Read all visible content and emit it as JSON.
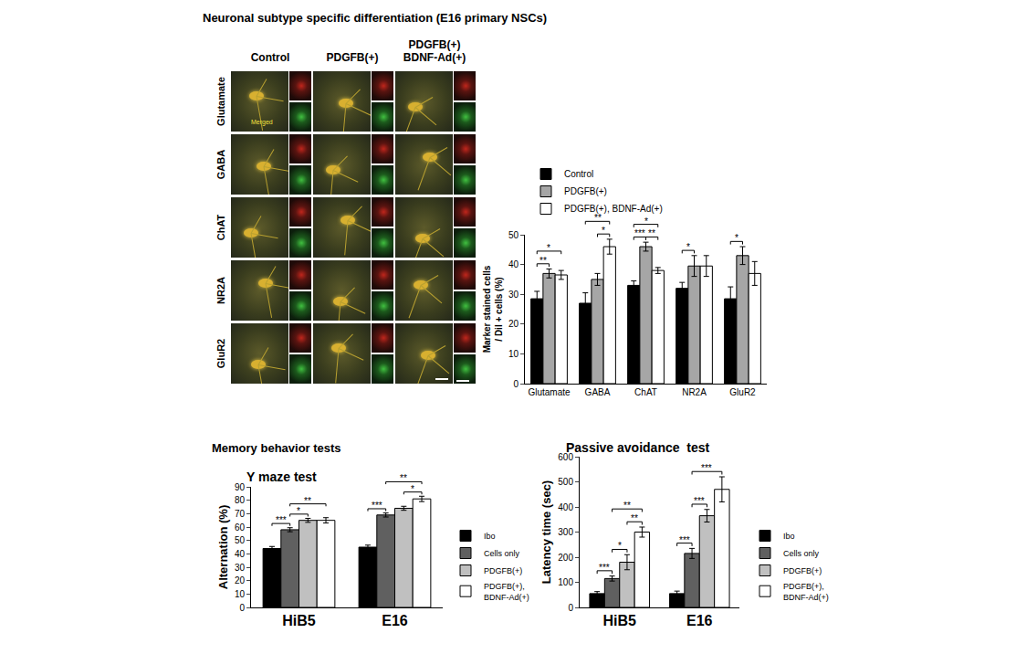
{
  "image_panel": {
    "title": "Neuronal subtype specific differentiation (E16 primary NSCs)",
    "columns": [
      "Control",
      "PDGFB(+)",
      "PDGFB(+) BDNF-Ad(+)"
    ],
    "rows": [
      "Glutamate",
      "GABA",
      "ChAT",
      "NR2A",
      "GluR2"
    ],
    "merged_label": "Merged"
  },
  "section_title": "Memory behavior tests",
  "chart_data": [
    {
      "type": "bar",
      "y_label": "Marker stained cells / DiI + cells (%)",
      "categories": [
        "Glutamate",
        "GABA",
        "ChAT",
        "NR2A",
        "GluR2"
      ],
      "series": [
        {
          "name": "Control",
          "color": "#000000",
          "values": [
            28.5,
            27,
            33,
            32,
            28.5
          ],
          "errors": [
            2.5,
            3.5,
            1.5,
            2,
            4
          ]
        },
        {
          "name": "PDGFB(+)",
          "color": "#a6a6a6",
          "values": [
            37,
            35,
            46,
            39.5,
            43
          ],
          "errors": [
            1.5,
            2,
            1.5,
            3.5,
            3
          ]
        },
        {
          "name": "PDGFB(+), BDNF-Ad(+)",
          "color": "#ffffff",
          "values": [
            36.5,
            46,
            38,
            39.5,
            37
          ],
          "errors": [
            1.5,
            2.5,
            1,
            3.5,
            4
          ]
        }
      ],
      "ylim": [
        0,
        50
      ],
      "yticks": [
        0,
        10,
        20,
        30,
        40,
        50
      ],
      "grid": false,
      "legend": "top left",
      "significance": [
        {
          "category": "Glutamate",
          "between": [
            "Control",
            "PDGFB(+)"
          ],
          "label": "**"
        },
        {
          "category": "Glutamate",
          "between": [
            "Control",
            "PDGFB(+), BDNF-Ad(+)"
          ],
          "label": "*"
        },
        {
          "category": "GABA",
          "between": [
            "PDGFB(+)",
            "PDGFB(+), BDNF-Ad(+)"
          ],
          "label": "*"
        },
        {
          "category": "GABA",
          "between": [
            "Control",
            "PDGFB(+), BDNF-Ad(+)"
          ],
          "label": "**"
        },
        {
          "category": "ChAT",
          "between": [
            "Control",
            "PDGFB(+)"
          ],
          "label": "***"
        },
        {
          "category": "ChAT",
          "between": [
            "PDGFB(+)",
            "PDGFB(+), BDNF-Ad(+)"
          ],
          "label": "**"
        },
        {
          "category": "ChAT",
          "between": [
            "Control",
            "PDGFB(+), BDNF-Ad(+)"
          ],
          "label": "*"
        },
        {
          "category": "NR2A",
          "between": [
            "Control",
            "PDGFB(+)"
          ],
          "label": "*"
        },
        {
          "category": "GluR2",
          "between": [
            "Control",
            "PDGFB(+)"
          ],
          "label": "*"
        }
      ]
    },
    {
      "type": "bar",
      "title": "Y maze test",
      "y_label": "Alternation (%)",
      "categories": [
        "HiB5",
        "E16"
      ],
      "series": [
        {
          "name": "Ibo",
          "color": "#000000",
          "values": [
            44,
            45
          ],
          "errors": [
            1.5,
            1.5
          ]
        },
        {
          "name": "Cells only",
          "color": "#606060",
          "values": [
            58,
            69
          ],
          "errors": [
            1.5,
            1.5
          ]
        },
        {
          "name": "PDGFB(+)",
          "color": "#c0c0c0",
          "values": [
            65,
            74
          ],
          "errors": [
            1.5,
            1.5
          ]
        },
        {
          "name": "PDGFB(+), BDNF-Ad(+)",
          "color": "#ffffff",
          "values": [
            65,
            81
          ],
          "errors": [
            2,
            2
          ]
        }
      ],
      "ylim": [
        0,
        90
      ],
      "yticks": [
        0,
        10,
        20,
        30,
        40,
        50,
        60,
        70,
        80,
        90
      ],
      "grid": false,
      "legend": "right",
      "significance": [
        {
          "category": "HiB5",
          "between": [
            "Ibo",
            "Cells only"
          ],
          "label": "***"
        },
        {
          "category": "HiB5",
          "between": [
            "Cells only",
            "PDGFB(+)"
          ],
          "label": "*"
        },
        {
          "category": "HiB5",
          "between": [
            "Cells only",
            "PDGFB(+), BDNF-Ad(+)"
          ],
          "label": "**"
        },
        {
          "category": "E16",
          "between": [
            "Ibo",
            "Cells only"
          ],
          "label": "***"
        },
        {
          "category": "E16",
          "between": [
            "PDGFB(+)",
            "PDGFB(+), BDNF-Ad(+)"
          ],
          "label": "*"
        },
        {
          "category": "E16",
          "between": [
            "Cells only",
            "PDGFB(+), BDNF-Ad(+)"
          ],
          "label": "**"
        }
      ]
    },
    {
      "type": "bar",
      "title": "Passive avoidance  test",
      "y_label": "Latency time (sec)",
      "categories": [
        "HiB5",
        "E16"
      ],
      "series": [
        {
          "name": "Ibo",
          "color": "#000000",
          "values": [
            55,
            55
          ],
          "errors": [
            8,
            10
          ]
        },
        {
          "name": "Cells only",
          "color": "#606060",
          "values": [
            115,
            215
          ],
          "errors": [
            10,
            20
          ]
        },
        {
          "name": "PDGFB(+)",
          "color": "#c0c0c0",
          "values": [
            180,
            365
          ],
          "errors": [
            30,
            25
          ]
        },
        {
          "name": "PDGFB(+), BDNF-Ad(+)",
          "color": "#ffffff",
          "values": [
            300,
            470
          ],
          "errors": [
            20,
            50
          ]
        }
      ],
      "ylim": [
        0,
        600
      ],
      "yticks": [
        0,
        100,
        200,
        300,
        400,
        500,
        600
      ],
      "grid": false,
      "legend": "right",
      "significance": [
        {
          "category": "HiB5",
          "between": [
            "Ibo",
            "Cells only"
          ],
          "label": "***"
        },
        {
          "category": "HiB5",
          "between": [
            "Cells only",
            "PDGFB(+)"
          ],
          "label": "*"
        },
        {
          "category": "HiB5",
          "between": [
            "PDGFB(+)",
            "PDGFB(+), BDNF-Ad(+)"
          ],
          "label": "**"
        },
        {
          "category": "HiB5",
          "between": [
            "Cells only",
            "PDGFB(+), BDNF-Ad(+)"
          ],
          "label": "**"
        },
        {
          "category": "E16",
          "between": [
            "Ibo",
            "Cells only"
          ],
          "label": "***"
        },
        {
          "category": "E16",
          "between": [
            "Cells only",
            "PDGFB(+)"
          ],
          "label": "***"
        },
        {
          "category": "E16",
          "between": [
            "Cells only",
            "PDGFB(+), BDNF-Ad(+)"
          ],
          "label": "***"
        }
      ]
    }
  ]
}
